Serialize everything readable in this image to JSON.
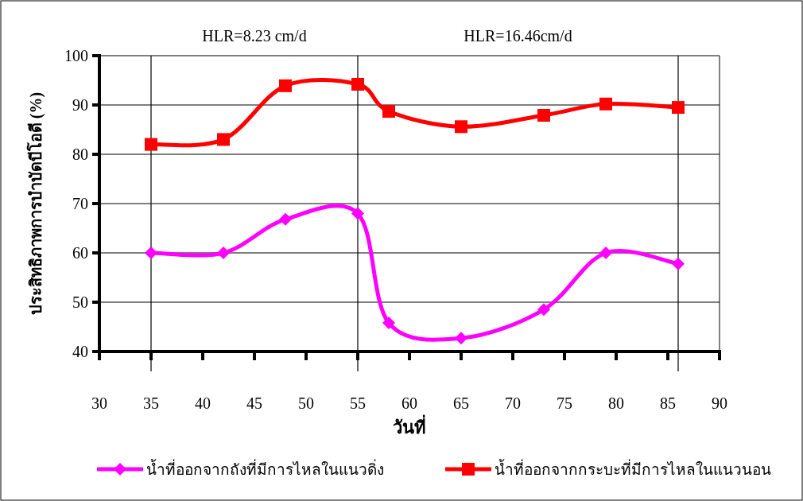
{
  "chart_data": {
    "type": "line",
    "xlabel": "วันที่",
    "ylabel": "ประสิทธิภาพการบำบัดบีโอดี  (%)",
    "annotations": [
      "HLR=8.23 cm/d",
      "HLR=16.46cm/d"
    ],
    "xlim": [
      30,
      90
    ],
    "xticks": [
      30,
      35,
      40,
      45,
      50,
      55,
      60,
      65,
      70,
      75,
      80,
      85,
      90
    ],
    "ylim": [
      40,
      100
    ],
    "yticks": [
      40,
      50,
      60,
      70,
      80,
      90,
      100
    ],
    "grid": "y",
    "legend": "bottom",
    "line_style": "solid",
    "ref_lines": [
      {
        "axis": "x",
        "value": 35,
        "color": "#000000"
      },
      {
        "axis": "x",
        "value": 55,
        "color": "#000000"
      },
      {
        "axis": "x",
        "value": 86,
        "color": "#000000"
      }
    ],
    "series": [
      {
        "name": "น้ำที่ออกจากถังที่มีการไหลในแนวดิ่ง",
        "color": "#ff00ff",
        "marker": "diamond",
        "x": [
          35,
          42,
          48,
          55,
          58,
          65,
          73,
          79,
          86
        ],
        "values": [
          60,
          60,
          66.8,
          68,
          45.8,
          42.7,
          48.5,
          60,
          57.8
        ]
      },
      {
        "name": "น้ำที่ออกจากกระบะที่มีการไหลในแนวนอน",
        "color": "#ff0000",
        "marker": "square",
        "x": [
          35,
          42,
          48,
          55,
          58,
          65,
          73,
          79,
          86
        ],
        "values": [
          82,
          83,
          93.9,
          94.2,
          88.7,
          85.6,
          87.9,
          90.2,
          89.5
        ]
      }
    ]
  }
}
